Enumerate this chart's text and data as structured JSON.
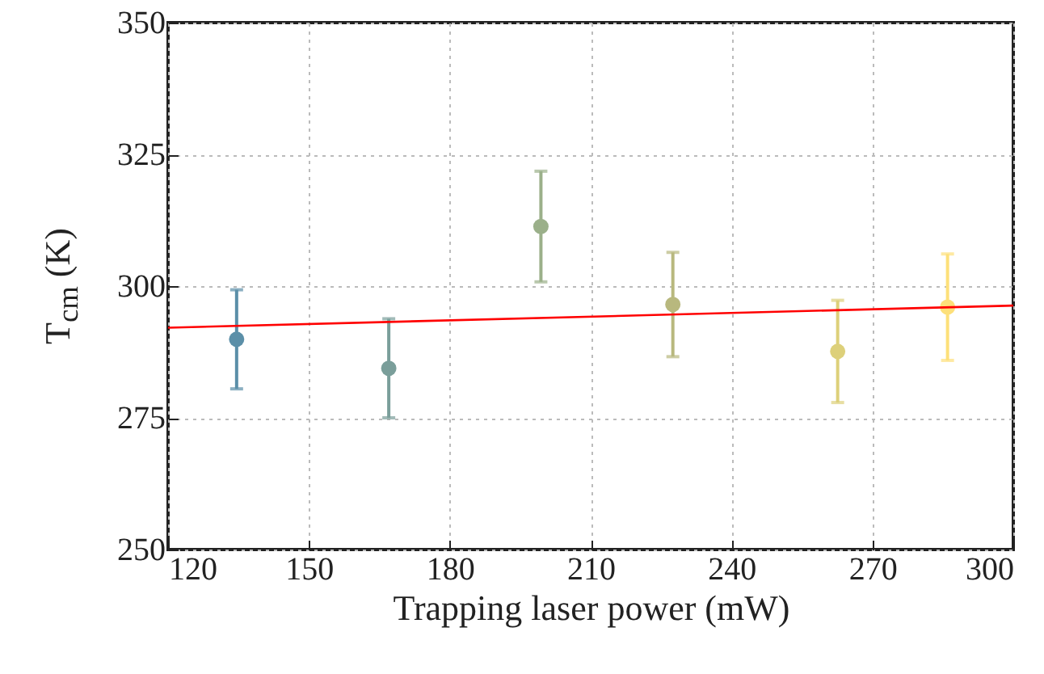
{
  "chart_data": {
    "type": "scatter",
    "xlabel": "Trapping laser power (mW)",
    "ylabel": "T$_{cm}$ (K)",
    "xlim": [
      120,
      300
    ],
    "xticks": [
      120,
      150,
      180,
      210,
      240,
      270,
      300
    ],
    "ylim": [
      250,
      350
    ],
    "yticks": [
      250,
      275,
      300,
      325,
      350
    ],
    "grid": true,
    "series": [
      {
        "marker": "circle",
        "x": [
          134.6,
          167,
          199.4,
          227.5,
          262.6,
          286
        ],
        "values": [
          289.9,
          284.4,
          311.3,
          296.5,
          287.6,
          296
        ],
        "errors": [
          9.4,
          9.4,
          10.5,
          9.9,
          9.7,
          10.1
        ],
        "colors": [
          "#5b8fa8",
          "#7a9e9a",
          "#9bb08a",
          "#b8b87e",
          "#ddd07a",
          "#fde07a"
        ]
      },
      {
        "type": "line",
        "x": [
          120,
          300
        ],
        "values": [
          292.1,
          296.3
        ],
        "color": "#ff0000"
      }
    ]
  }
}
